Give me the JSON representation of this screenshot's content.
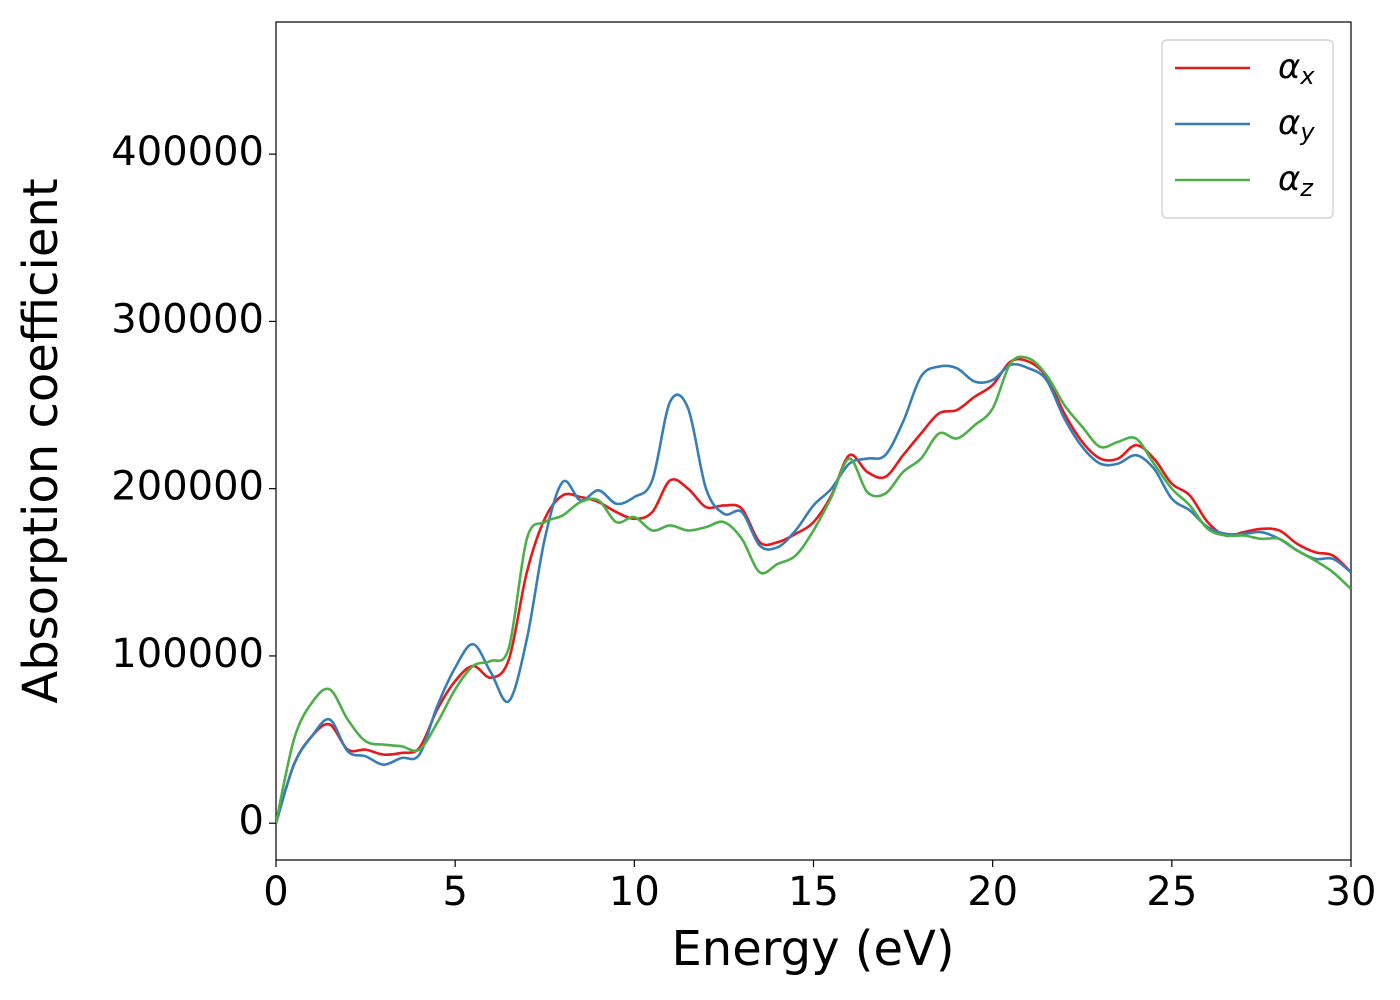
{
  "chart_data": {
    "type": "line",
    "xlabel": "Energy (eV)",
    "ylabel": "Absorption coefficient",
    "x": [
      0,
      0.5,
      1,
      1.5,
      2,
      2.5,
      3,
      3.5,
      4,
      4.5,
      5,
      5.5,
      6,
      6.5,
      7,
      7.5,
      8,
      8.5,
      9,
      9.5,
      10,
      10.5,
      11,
      11.5,
      12,
      12.5,
      13,
      13.5,
      14,
      14.5,
      15,
      15.5,
      16,
      16.5,
      17,
      17.5,
      18,
      18.5,
      19,
      19.5,
      20,
      20.5,
      21,
      21.5,
      22,
      22.5,
      23,
      23.5,
      24,
      24.5,
      25,
      25.5,
      26,
      26.5,
      27,
      27.5,
      28,
      28.5,
      29,
      29.5,
      30
    ],
    "series": [
      {
        "name": "αx",
        "color": "#e41a1c",
        "values": [
          0,
          35000,
          52000,
          59000,
          44000,
          44000,
          41000,
          42000,
          45000,
          68000,
          85000,
          94000,
          87000,
          98000,
          150000,
          182000,
          196000,
          195000,
          192000,
          186000,
          182000,
          186000,
          205000,
          200000,
          189000,
          190000,
          188000,
          168000,
          168000,
          173000,
          180000,
          196000,
          220000,
          210000,
          207000,
          220000,
          233000,
          245000,
          247000,
          255000,
          262000,
          276000,
          276000,
          267000,
          245000,
          228000,
          218000,
          218000,
          226000,
          218000,
          203000,
          196000,
          180000,
          172000,
          174000,
          176000,
          175000,
          167000,
          162000,
          160000,
          150000
        ]
      },
      {
        "name": "αy",
        "color": "#377eb8",
        "values": [
          0,
          35000,
          52000,
          62000,
          43000,
          40000,
          35000,
          39000,
          41000,
          70000,
          93000,
          107000,
          90000,
          73000,
          110000,
          170000,
          204000,
          193000,
          199000,
          191000,
          195000,
          205000,
          252000,
          248000,
          200000,
          185000,
          186000,
          166000,
          165000,
          175000,
          190000,
          200000,
          215000,
          218000,
          220000,
          240000,
          267000,
          273000,
          272000,
          264000,
          265000,
          274000,
          272000,
          265000,
          242000,
          225000,
          215000,
          215000,
          220000,
          212000,
          194000,
          187000,
          177000,
          173000,
          173000,
          174000,
          170000,
          163000,
          158000,
          158000,
          150000
        ]
      },
      {
        "name": "αz",
        "color": "#4daf4a",
        "values": [
          0,
          50000,
          72000,
          80000,
          62000,
          49000,
          47000,
          46000,
          44000,
          60000,
          80000,
          94000,
          97000,
          105000,
          170000,
          180000,
          184000,
          192000,
          193000,
          180000,
          183000,
          175000,
          178000,
          175000,
          177000,
          180000,
          170000,
          150000,
          155000,
          160000,
          175000,
          195000,
          218000,
          198000,
          197000,
          210000,
          218000,
          233000,
          230000,
          238000,
          248000,
          275000,
          278000,
          268000,
          250000,
          237000,
          225000,
          228000,
          230000,
          215000,
          200000,
          190000,
          176000,
          172000,
          172000,
          170000,
          170000,
          163000,
          157000,
          150000,
          140000
        ]
      }
    ],
    "xlim": [
      0,
      30
    ],
    "xticks": [
      0,
      5,
      10,
      15,
      20,
      25,
      30
    ],
    "ylim": [
      -22000,
      479000
    ],
    "yticks": [
      0,
      100000,
      200000,
      300000,
      400000
    ],
    "legend": "upper right",
    "grid": false
  }
}
